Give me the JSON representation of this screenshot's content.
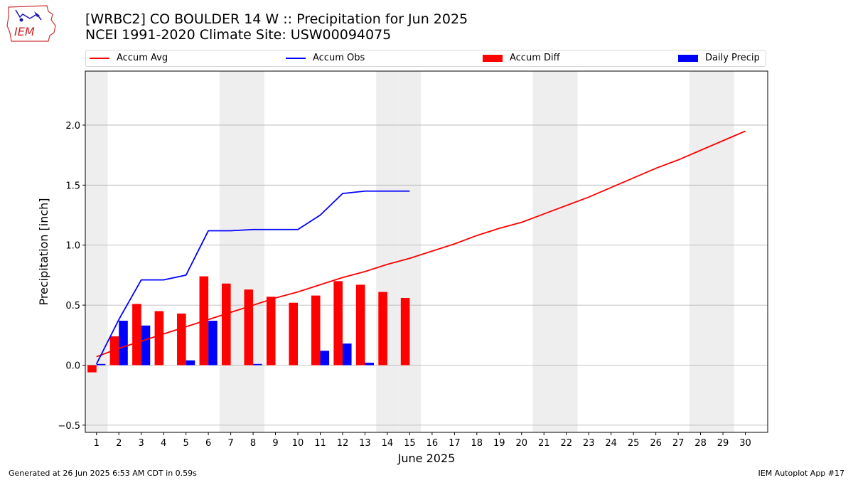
{
  "header": {
    "title_line1": "[WRBC2] CO BOULDER 14 W :: Precipitation for Jun 2025",
    "title_line2": "NCEI 1991-2020 Climate Site: USW00094075"
  },
  "logo": {
    "text": "IEM"
  },
  "footer": {
    "left": "Generated at 26 Jun 2025 6:53 AM CDT in 0.59s",
    "right": "IEM Autoplot App #17"
  },
  "colors": {
    "avg": "#ff0000",
    "obs": "#0000ff",
    "diff": "#ff0000",
    "daily": "#0000ff",
    "weekend": "#eeeeee"
  },
  "chart_data": {
    "type": "bar",
    "xlabel": "June 2025",
    "ylabel": "Precipitation [inch]",
    "xlim": [
      0.5,
      31.0
    ],
    "ylim": [
      -0.56,
      2.45
    ],
    "yticks": [
      -0.5,
      0.0,
      0.5,
      1.0,
      1.5,
      2.0
    ],
    "ytick_labels": [
      "−0.5",
      "0.0",
      "0.5",
      "1.0",
      "1.5",
      "2.0"
    ],
    "xticks": [
      1,
      2,
      3,
      4,
      5,
      6,
      7,
      8,
      9,
      10,
      11,
      12,
      13,
      14,
      15,
      16,
      17,
      18,
      19,
      20,
      21,
      22,
      23,
      24,
      25,
      26,
      27,
      28,
      29,
      30
    ],
    "grid": "horizontal",
    "weekend_days": [
      1,
      7,
      8,
      14,
      15,
      21,
      22,
      28,
      29
    ],
    "legend": [
      "Accum Avg",
      "Accum Obs",
      "Accum Diff",
      "Daily Precip"
    ],
    "series": [
      {
        "name": "Accum Avg",
        "kind": "line",
        "x": [
          1,
          2,
          3,
          4,
          5,
          6,
          7,
          8,
          9,
          10,
          11,
          12,
          13,
          14,
          15,
          16,
          17,
          18,
          19,
          20,
          21,
          22,
          23,
          24,
          25,
          26,
          27,
          28,
          29,
          30
        ],
        "values": [
          0.07,
          0.14,
          0.2,
          0.26,
          0.32,
          0.38,
          0.44,
          0.5,
          0.56,
          0.61,
          0.67,
          0.73,
          0.78,
          0.84,
          0.89,
          0.95,
          1.01,
          1.08,
          1.14,
          1.19,
          1.26,
          1.33,
          1.4,
          1.48,
          1.56,
          1.64,
          1.71,
          1.79,
          1.87,
          1.95
        ]
      },
      {
        "name": "Accum Obs",
        "kind": "line",
        "x": [
          1,
          2,
          3,
          4,
          5,
          6,
          7,
          8,
          9,
          10,
          11,
          12,
          13,
          14,
          15
        ],
        "values": [
          0.01,
          0.38,
          0.71,
          0.71,
          0.75,
          1.12,
          1.12,
          1.13,
          1.13,
          1.13,
          1.25,
          1.43,
          1.45,
          1.45,
          1.45
        ]
      },
      {
        "name": "Accum Diff",
        "kind": "bar",
        "x": [
          1,
          2,
          3,
          4,
          5,
          6,
          7,
          8,
          9,
          10,
          11,
          12,
          13,
          14,
          15
        ],
        "values": [
          -0.06,
          0.24,
          0.51,
          0.45,
          0.43,
          0.74,
          0.68,
          0.63,
          0.57,
          0.52,
          0.58,
          0.7,
          0.67,
          0.61,
          0.56
        ]
      },
      {
        "name": "Daily Precip",
        "kind": "bar",
        "x": [
          1,
          2,
          3,
          4,
          5,
          6,
          7,
          8,
          9,
          10,
          11,
          12,
          13,
          14,
          15
        ],
        "values": [
          0.01,
          0.37,
          0.33,
          0.0,
          0.04,
          0.37,
          0.0,
          0.01,
          0.0,
          0.0,
          0.12,
          0.18,
          0.02,
          0.0,
          0.0
        ]
      }
    ]
  }
}
